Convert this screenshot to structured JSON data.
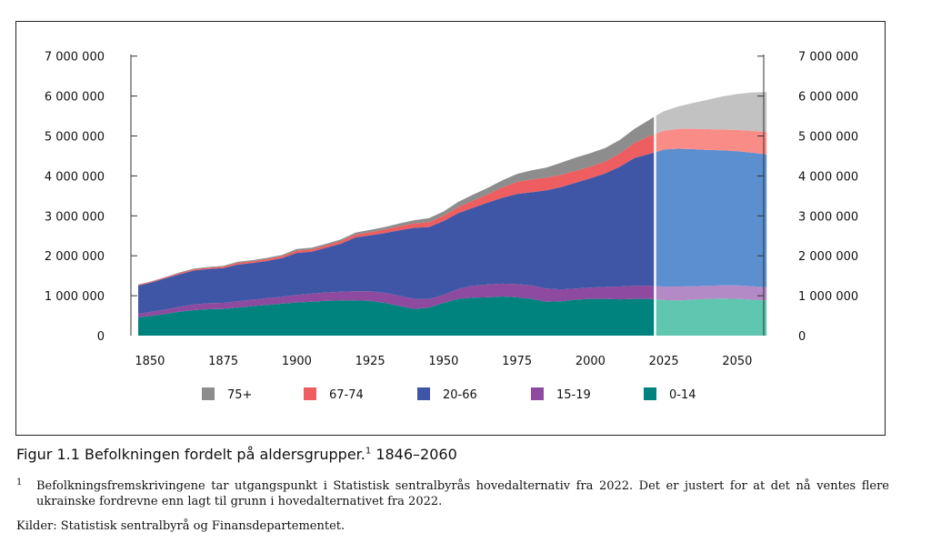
{
  "chart_data": {
    "type": "area",
    "stacked": true,
    "x_hist": [
      1846,
      1850,
      1855,
      1860,
      1865,
      1870,
      1875,
      1880,
      1885,
      1890,
      1895,
      1900,
      1905,
      1910,
      1915,
      1920,
      1925,
      1930,
      1935,
      1940,
      1945,
      1950,
      1955,
      1960,
      1965,
      1970,
      1975,
      1980,
      1985,
      1990,
      1995,
      2000,
      2005,
      2010,
      2015,
      2020,
      2022
    ],
    "x_proj": [
      2022,
      2025,
      2030,
      2035,
      2040,
      2045,
      2050,
      2055,
      2060
    ],
    "series": [
      {
        "name": "0-14",
        "color": "#00827f",
        "proj_color": "#5fc6b0",
        "hist": [
          460000,
          490000,
          540000,
          600000,
          640000,
          660000,
          670000,
          700000,
          740000,
          770000,
          800000,
          830000,
          850000,
          870000,
          880000,
          880000,
          870000,
          820000,
          740000,
          670000,
          700000,
          820000,
          920000,
          950000,
          960000,
          980000,
          960000,
          920000,
          850000,
          860000,
          900000,
          920000,
          920000,
          910000,
          920000,
          920000,
          910000
        ],
        "proj": [
          910000,
          890000,
          880000,
          900000,
          920000,
          930000,
          920000,
          900000,
          880000
        ]
      },
      {
        "name": "15-19",
        "color": "#8e4a9e",
        "proj_color": "#b389c6",
        "hist": [
          90000,
          100000,
          110000,
          120000,
          140000,
          150000,
          150000,
          160000,
          160000,
          170000,
          170000,
          190000,
          200000,
          210000,
          220000,
          230000,
          240000,
          250000,
          260000,
          250000,
          220000,
          200000,
          250000,
          300000,
          320000,
          320000,
          330000,
          340000,
          330000,
          300000,
          280000,
          280000,
          300000,
          320000,
          330000,
          330000,
          330000
        ],
        "proj": [
          330000,
          340000,
          350000,
          340000,
          330000,
          330000,
          340000,
          340000,
          330000
        ]
      },
      {
        "name": "20-66",
        "color": "#3f56a6",
        "proj_color": "#5b8fcf",
        "hist": [
          700000,
          730000,
          780000,
          810000,
          850000,
          860000,
          870000,
          920000,
          920000,
          930000,
          970000,
          1050000,
          1050000,
          1120000,
          1200000,
          1350000,
          1400000,
          1500000,
          1640000,
          1780000,
          1800000,
          1850000,
          1900000,
          1950000,
          2050000,
          2150000,
          2260000,
          2330000,
          2460000,
          2560000,
          2650000,
          2740000,
          2840000,
          3000000,
          3200000,
          3300000,
          3350000
        ],
        "proj": [
          3350000,
          3430000,
          3450000,
          3430000,
          3400000,
          3380000,
          3360000,
          3340000,
          3330000
        ]
      },
      {
        "name": "67-74",
        "color": "#ee5d5f",
        "proj_color": "#fa8c87",
        "hist": [
          20000,
          20000,
          20000,
          30000,
          30000,
          30000,
          40000,
          40000,
          40000,
          50000,
          50000,
          60000,
          60000,
          60000,
          70000,
          70000,
          80000,
          90000,
          100000,
          110000,
          120000,
          130000,
          150000,
          180000,
          210000,
          260000,
          300000,
          320000,
          320000,
          310000,
          300000,
          290000,
          300000,
          330000,
          380000,
          440000,
          460000
        ],
        "proj": [
          460000,
          470000,
          500000,
          510000,
          520000,
          520000,
          530000,
          550000,
          560000
        ]
      },
      {
        "name": "75+",
        "color": "#8d8d8d",
        "proj_color": "#c2c2c2",
        "hist": [
          10000,
          10000,
          10000,
          20000,
          20000,
          20000,
          20000,
          30000,
          30000,
          30000,
          30000,
          40000,
          40000,
          40000,
          40000,
          50000,
          60000,
          60000,
          70000,
          80000,
          100000,
          110000,
          130000,
          150000,
          160000,
          180000,
          200000,
          230000,
          250000,
          300000,
          330000,
          340000,
          340000,
          340000,
          350000,
          410000,
          450000
        ],
        "proj": [
          450000,
          490000,
          560000,
          650000,
          740000,
          830000,
          900000,
          960000,
          1000000
        ]
      }
    ],
    "xlim": [
      1846,
      2060
    ],
    "ylim": [
      0,
      7000000
    ],
    "y_ticks": [
      0,
      1000000,
      2000000,
      3000000,
      4000000,
      5000000,
      6000000,
      7000000
    ],
    "y_tick_labels": [
      "0",
      "1 000 000",
      "2 000 000",
      "3 000 000",
      "4 000 000",
      "5 000 000",
      "6 000 000",
      "7 000 000"
    ],
    "x_ticks": [
      1850,
      1875,
      1900,
      1925,
      1950,
      1975,
      2000,
      2025,
      2050
    ],
    "x_tick_labels": [
      "1850",
      "1875",
      "1900",
      "1925",
      "1950",
      "1975",
      "2000",
      "2025",
      "2050"
    ],
    "projection_divider_x": 2022,
    "legend_order": [
      "75+",
      "67-74",
      "20-66",
      "15-19",
      "0-14"
    ],
    "legend_position": "bottom",
    "grid": false
  },
  "caption": {
    "prefix": "Figur 1.1 ",
    "title": "Befolkningen fordelt på aldersgrupper.",
    "sup": "1",
    "range": " 1846–2060"
  },
  "footnote": {
    "mark": "1",
    "text": "Befolkningsfremskrivingene tar utgangspunkt i Statistisk sentralbyrås hovedalternativ fra 2022. Det er justert for at det nå ventes flere ukrainske fordrevne enn lagt til grunn i hovedalternativet fra 2022."
  },
  "sources": "Kilder: Statistisk sentralbyrå og Finansdepartementet."
}
